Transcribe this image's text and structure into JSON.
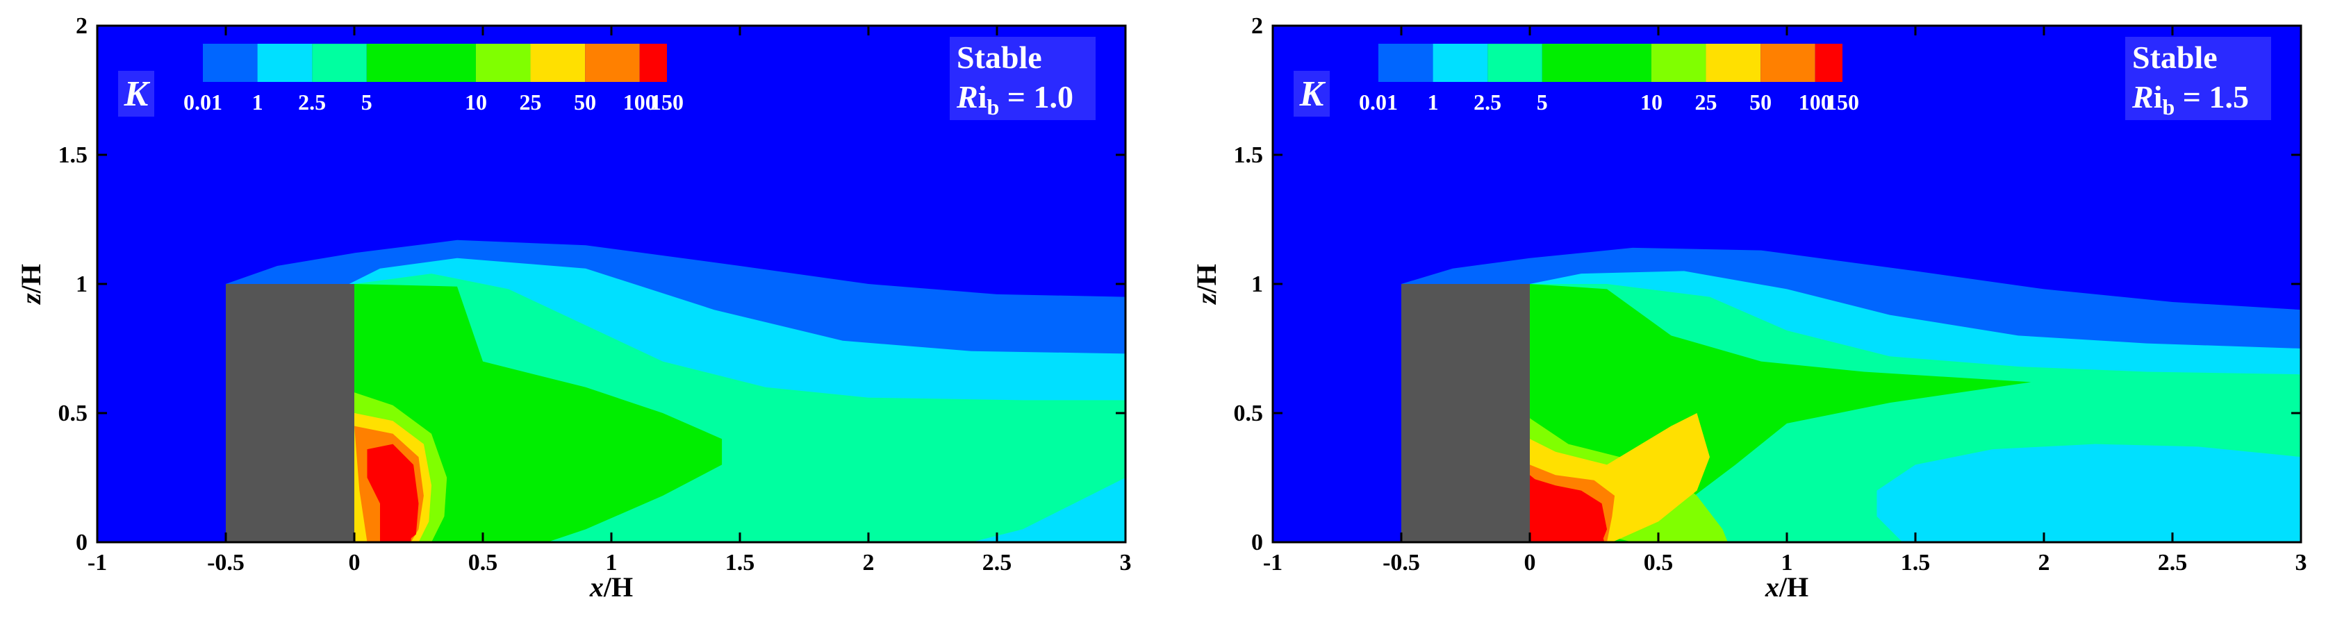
{
  "figure": {
    "colors": {
      "levels": [
        "#0000ff",
        "#0066ff",
        "#00e0ff",
        "#00ffa0",
        "#00ee00",
        "#80ff00",
        "#ffe000",
        "#ff8000",
        "#ff0000"
      ],
      "building": "#555555",
      "annotation_box": "#2a2aff",
      "axis": "#000000"
    }
  },
  "chart_data": [
    {
      "type": "contour",
      "title": "",
      "variable_label": "K",
      "annotation": {
        "line1": "Stable",
        "ri_R": "R",
        "ri_i": "i",
        "ri_sub": "b",
        "ri_value": " = 1.0"
      },
      "xlabel": {
        "var": "x",
        "rest": "/H"
      },
      "ylabel": {
        "var": "z",
        "rest": "/H"
      },
      "xlim": [
        -1,
        3
      ],
      "ylim": [
        0,
        2
      ],
      "xticks": [
        "-1",
        "-0.5",
        "0",
        "0.5",
        "1",
        "1.5",
        "2",
        "2.5",
        "3"
      ],
      "yticks": [
        "0",
        "0.5",
        "1",
        "1.5",
        "2"
      ],
      "colorbar_levels": [
        "0.01",
        "1",
        "2.5",
        "5",
        "10",
        "25",
        "50",
        "100",
        "150"
      ],
      "building": {
        "x": [
          -0.5,
          0
        ],
        "z": [
          0,
          1
        ]
      },
      "contour_levels_xz": [
        {
          "level": "0.01",
          "region": [
            [
              -0.5,
              1
            ],
            [
              -0.3,
              1.07
            ],
            [
              0,
              1.12
            ],
            [
              0.4,
              1.17
            ],
            [
              0.9,
              1.15
            ],
            [
              1.5,
              1.07
            ],
            [
              2.0,
              1.0
            ],
            [
              2.5,
              0.96
            ],
            [
              3,
              0.95
            ],
            [
              3,
              0
            ],
            [
              -0.5,
              0
            ]
          ]
        },
        {
          "level": "1",
          "region": [
            [
              -0.02,
              1.0
            ],
            [
              0.1,
              1.06
            ],
            [
              0.4,
              1.1
            ],
            [
              0.9,
              1.06
            ],
            [
              1.4,
              0.9
            ],
            [
              1.9,
              0.78
            ],
            [
              2.4,
              0.74
            ],
            [
              3,
              0.73
            ],
            [
              3,
              0
            ],
            [
              -0.02,
              0
            ]
          ]
        },
        {
          "level": "2.5",
          "region": [
            [
              0,
              1.0
            ],
            [
              0.3,
              1.04
            ],
            [
              0.6,
              0.98
            ],
            [
              0.9,
              0.84
            ],
            [
              1.2,
              0.7
            ],
            [
              1.6,
              0.6
            ],
            [
              2.0,
              0.56
            ],
            [
              2.6,
              0.55
            ],
            [
              3,
              0.55
            ],
            [
              3,
              0.25
            ],
            [
              2.8,
              0.15
            ],
            [
              2.6,
              0.05
            ],
            [
              2.4,
              0
            ],
            [
              0,
              0
            ]
          ]
        },
        {
          "level": "5",
          "region": [
            [
              0,
              1.0
            ],
            [
              0.4,
              0.99
            ],
            [
              0.5,
              0.7
            ],
            [
              0.9,
              0.6
            ],
            [
              1.2,
              0.5
            ],
            [
              1.43,
              0.4
            ],
            [
              1.43,
              0.3
            ],
            [
              1.2,
              0.18
            ],
            [
              0.9,
              0.05
            ],
            [
              0.75,
              0
            ],
            [
              0,
              0
            ]
          ]
        },
        {
          "level": "10",
          "region": [
            [
              0,
              0.58
            ],
            [
              0.15,
              0.53
            ],
            [
              0.3,
              0.42
            ],
            [
              0.36,
              0.25
            ],
            [
              0.35,
              0.1
            ],
            [
              0.3,
              0
            ],
            [
              0,
              0
            ]
          ]
        },
        {
          "level": "25",
          "region": [
            [
              0,
              0.5
            ],
            [
              0.15,
              0.47
            ],
            [
              0.27,
              0.38
            ],
            [
              0.3,
              0.22
            ],
            [
              0.29,
              0.08
            ],
            [
              0.25,
              0
            ],
            [
              0,
              0
            ]
          ]
        },
        {
          "level": "50",
          "region": [
            [
              0,
              0.45
            ],
            [
              0.15,
              0.42
            ],
            [
              0.25,
              0.33
            ],
            [
              0.27,
              0.18
            ],
            [
              0.25,
              0.05
            ],
            [
              0.22,
              0
            ],
            [
              0.05,
              0
            ],
            [
              0.02,
              0.2
            ]
          ]
        },
        {
          "level": "100",
          "region": [
            [
              0.05,
              0.36
            ],
            [
              0.15,
              0.38
            ],
            [
              0.23,
              0.3
            ],
            [
              0.25,
              0.15
            ],
            [
              0.24,
              0.03
            ],
            [
              0.2,
              0
            ],
            [
              0.1,
              0
            ],
            [
              0.1,
              0.15
            ],
            [
              0.05,
              0.25
            ]
          ]
        },
        {
          "level": "150",
          "region": [
            [
              0.1,
              0.3
            ],
            [
              0.17,
              0.35
            ],
            [
              0.22,
              0.3
            ],
            [
              0.23,
              0.18
            ],
            [
              0.22,
              0
            ],
            [
              0.15,
              0
            ],
            [
              0.12,
              0.18
            ]
          ]
        }
      ]
    },
    {
      "type": "contour",
      "title": "",
      "variable_label": "K",
      "annotation": {
        "line1": "Stable",
        "ri_R": "R",
        "ri_i": "i",
        "ri_sub": "b",
        "ri_value": " = 1.5"
      },
      "xlabel": {
        "var": "x",
        "rest": "/H"
      },
      "ylabel": {
        "var": "z",
        "rest": "/H"
      },
      "xlim": [
        -1,
        3
      ],
      "ylim": [
        0,
        2
      ],
      "xticks": [
        "-1",
        "-0.5",
        "0",
        "0.5",
        "1",
        "1.5",
        "2",
        "2.5",
        "3"
      ],
      "yticks": [
        "0",
        "0.5",
        "1",
        "1.5",
        "2"
      ],
      "colorbar_levels": [
        "0.01",
        "1",
        "2.5",
        "5",
        "10",
        "25",
        "50",
        "100",
        "150"
      ],
      "building": {
        "x": [
          -0.5,
          0
        ],
        "z": [
          0,
          1
        ]
      },
      "contour_levels_xz": [
        {
          "level": "0.01",
          "region": [
            [
              -0.5,
              1
            ],
            [
              -0.3,
              1.06
            ],
            [
              0,
              1.1
            ],
            [
              0.4,
              1.14
            ],
            [
              0.9,
              1.13
            ],
            [
              1.5,
              1.05
            ],
            [
              2.0,
              0.98
            ],
            [
              2.5,
              0.93
            ],
            [
              3,
              0.9
            ],
            [
              3,
              0
            ],
            [
              -0.5,
              0
            ]
          ]
        },
        {
          "level": "1",
          "region": [
            [
              0,
              1.0
            ],
            [
              0.2,
              1.04
            ],
            [
              0.6,
              1.05
            ],
            [
              1.0,
              0.98
            ],
            [
              1.4,
              0.88
            ],
            [
              1.9,
              0.8
            ],
            [
              2.4,
              0.77
            ],
            [
              3,
              0.75
            ],
            [
              3,
              0
            ],
            [
              0,
              0
            ]
          ]
        },
        {
          "level": "2.5",
          "region": [
            [
              0,
              1.0
            ],
            [
              0.3,
              1.0
            ],
            [
              0.7,
              0.95
            ],
            [
              1.0,
              0.82
            ],
            [
              1.4,
              0.72
            ],
            [
              1.9,
              0.68
            ],
            [
              2.4,
              0.66
            ],
            [
              3,
              0.65
            ],
            [
              3,
              0.33
            ],
            [
              2.6,
              0.37
            ],
            [
              2.2,
              0.38
            ],
            [
              1.8,
              0.36
            ],
            [
              1.5,
              0.3
            ],
            [
              1.35,
              0.2
            ],
            [
              1.35,
              0.1
            ],
            [
              1.45,
              0
            ],
            [
              0,
              0
            ]
          ]
        },
        {
          "level": "5",
          "region": [
            [
              0,
              1.0
            ],
            [
              0.3,
              0.98
            ],
            [
              0.55,
              0.8
            ],
            [
              0.9,
              0.7
            ],
            [
              1.3,
              0.66
            ],
            [
              1.95,
              0.62
            ],
            [
              1.4,
              0.54
            ],
            [
              1.0,
              0.46
            ],
            [
              0.8,
              0.3
            ],
            [
              0.6,
              0.15
            ],
            [
              0.4,
              0
            ],
            [
              0,
              0
            ]
          ]
        },
        {
          "level": "10",
          "region": [
            [
              0,
              0.48
            ],
            [
              0.15,
              0.38
            ],
            [
              0.35,
              0.33
            ],
            [
              0.5,
              0.3
            ],
            [
              0.65,
              0.18
            ],
            [
              0.75,
              0.05
            ],
            [
              0.77,
              0
            ],
            [
              0.4,
              0
            ],
            [
              0.2,
              0.05
            ],
            [
              0,
              0.1
            ]
          ]
        },
        {
          "level": "25",
          "region": [
            [
              0,
              0.4
            ],
            [
              0.1,
              0.35
            ],
            [
              0.3,
              0.3
            ],
            [
              0.55,
              0.45
            ],
            [
              0.65,
              0.5
            ],
            [
              0.7,
              0.33
            ],
            [
              0.65,
              0.2
            ],
            [
              0.5,
              0.08
            ],
            [
              0.32,
              0
            ],
            [
              0,
              0
            ]
          ]
        },
        {
          "level": "50",
          "region": [
            [
              0,
              0.3
            ],
            [
              0.1,
              0.26
            ],
            [
              0.25,
              0.24
            ],
            [
              0.33,
              0.18
            ],
            [
              0.32,
              0.1
            ],
            [
              0.3,
              0
            ],
            [
              0,
              0
            ]
          ]
        },
        {
          "level": "100",
          "region": [
            [
              0,
              0.25
            ],
            [
              0.1,
              0.22
            ],
            [
              0.2,
              0.2
            ],
            [
              0.28,
              0.15
            ],
            [
              0.3,
              0.05
            ],
            [
              0.28,
              0
            ],
            [
              0,
              0
            ]
          ]
        },
        {
          "level": "150",
          "region": [
            [
              0,
              0.26
            ],
            [
              0.05,
              0.22
            ],
            [
              0.12,
              0.19
            ],
            [
              0.25,
              0.14
            ],
            [
              0.29,
              0
            ],
            [
              0,
              0
            ]
          ]
        }
      ]
    }
  ]
}
